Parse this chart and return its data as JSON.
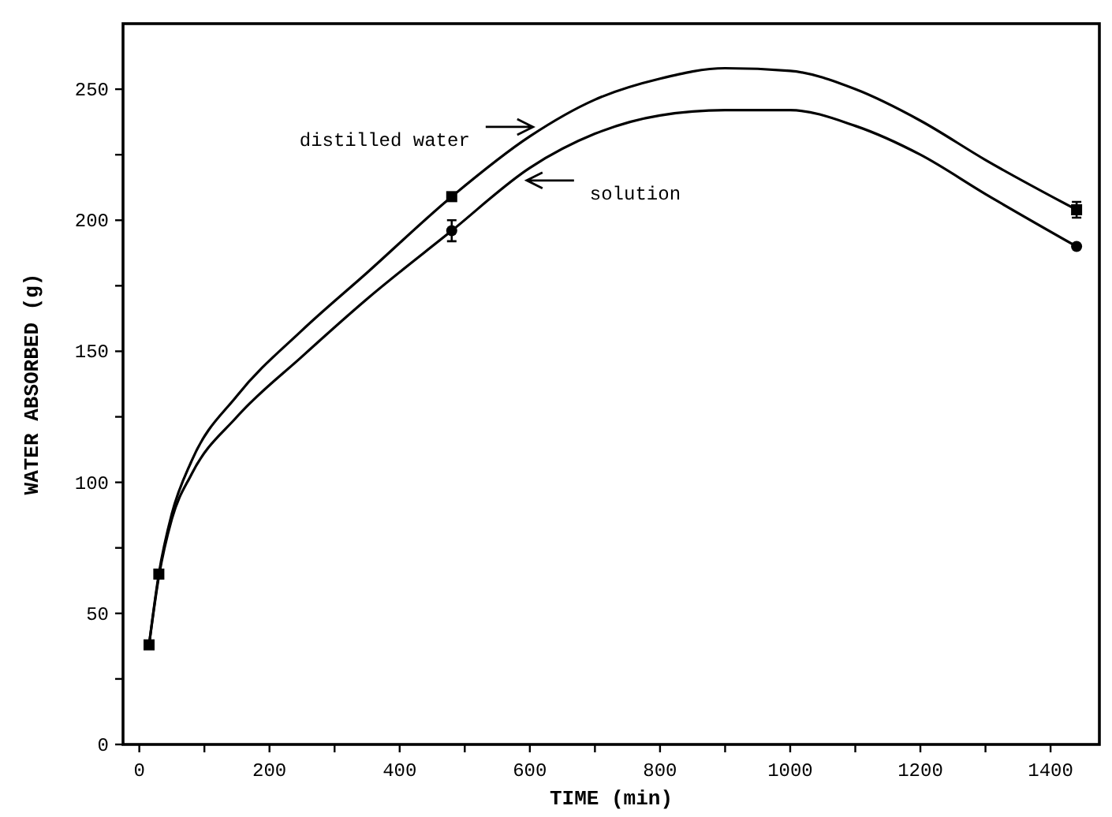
{
  "chart_data": {
    "type": "line",
    "xlabel": "TIME (min)",
    "ylabel": "WATER ABSORBED (g)",
    "xlim": [
      -25,
      1475
    ],
    "ylim": [
      0,
      275
    ],
    "xticks": [
      0,
      {
        "value": 100,
        "label": null
      },
      200,
      {
        "value": 300,
        "label": null
      },
      400,
      {
        "value": 500,
        "label": null
      },
      600,
      {
        "value": 700,
        "label": null
      },
      800,
      {
        "value": 900,
        "label": null
      },
      1000,
      {
        "value": 1100,
        "label": null
      },
      1200,
      {
        "value": 1300,
        "label": null
      },
      1400
    ],
    "yticks": [
      0,
      {
        "value": 25,
        "label": null
      },
      50,
      {
        "value": 75,
        "label": null
      },
      100,
      {
        "value": 125,
        "label": null
      },
      150,
      {
        "value": 175,
        "label": null
      },
      200,
      {
        "value": 225,
        "label": null
      },
      250
    ],
    "grid": false,
    "legend": false,
    "line_style": "solid",
    "marker": "none",
    "series": [
      {
        "name": "distilled water",
        "color": "#000000",
        "x": [
          15,
          30,
          50,
          80,
          150,
          250,
          350,
          480,
          600,
          700,
          800,
          900,
          1000,
          1100,
          1200,
          1300,
          1440
        ],
        "values": [
          38,
          65,
          88,
          108,
          133,
          158,
          180,
          209,
          232,
          246,
          254,
          258,
          257,
          250,
          238,
          223,
          204
        ]
      },
      {
        "name": "solution",
        "color": "#000000",
        "x": [
          15,
          30,
          50,
          80,
          150,
          250,
          350,
          480,
          600,
          700,
          800,
          900,
          1000,
          1100,
          1200,
          1300,
          1440
        ],
        "values": [
          38,
          64,
          86,
          103,
          125,
          148,
          170,
          196,
          220,
          233,
          240,
          242,
          242,
          236,
          225,
          210,
          190
        ]
      },
      {
        "color": "#000000",
        "type": "scatter",
        "marker": "square",
        "x": [
          15,
          30,
          480,
          1440
        ],
        "values": [
          38,
          65,
          209,
          204
        ],
        "errors": [
          null,
          null,
          null,
          3
        ]
      },
      {
        "color": "#000000",
        "type": "scatter",
        "marker": "circle",
        "x": [
          480,
          1440
        ],
        "values": [
          196,
          190
        ],
        "errors": [
          4,
          null
        ]
      }
    ]
  }
}
